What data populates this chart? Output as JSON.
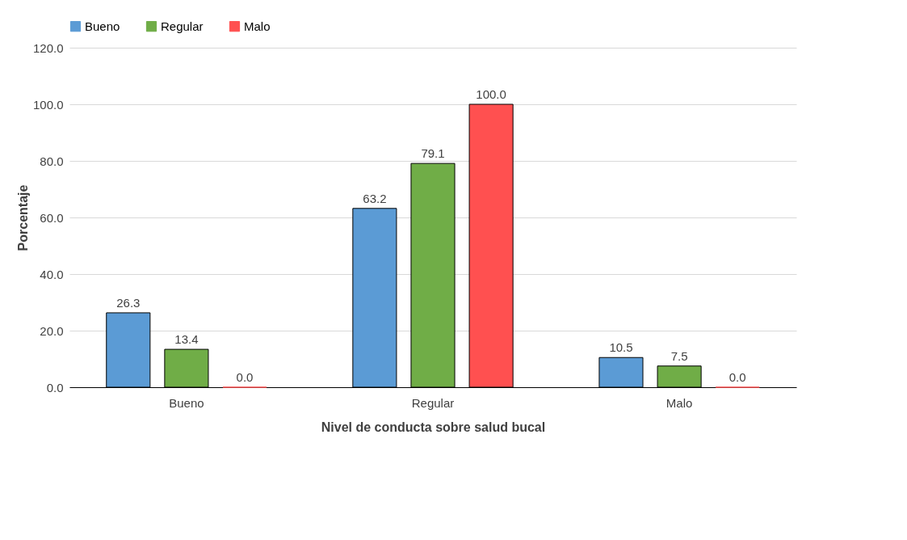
{
  "chart_data": {
    "type": "bar",
    "xlabel": "Nivel de conducta sobre salud bucal",
    "ylabel": "Porcentaje",
    "categories": [
      "Bueno",
      "Regular",
      "Malo"
    ],
    "series": [
      {
        "name": "Bueno",
        "color": "#5b9bd5",
        "values": [
          26.3,
          63.2,
          10.5
        ],
        "value_labels": [
          "26.3",
          "63.2",
          "10.5"
        ]
      },
      {
        "name": "Regular",
        "color": "#70ad47",
        "values": [
          13.4,
          79.1,
          7.5
        ],
        "value_labels": [
          "13.4",
          "79.1",
          "7.5"
        ]
      },
      {
        "name": "Malo",
        "color": "#ff5050",
        "values": [
          0.0,
          100.0,
          0.0
        ],
        "value_labels": [
          "0.0",
          "100.0",
          "0.0"
        ]
      }
    ],
    "ylim": [
      0,
      120
    ],
    "yticks": [
      {
        "value": 0,
        "label": "0.0"
      },
      {
        "value": 20,
        "label": "20.0"
      },
      {
        "value": 40,
        "label": "40.0"
      },
      {
        "value": 60,
        "label": "60.0"
      },
      {
        "value": 80,
        "label": "80.0"
      },
      {
        "value": 100,
        "label": "100.0"
      },
      {
        "value": 120,
        "label": "120.0"
      }
    ],
    "grid": "y",
    "legend": "top"
  }
}
